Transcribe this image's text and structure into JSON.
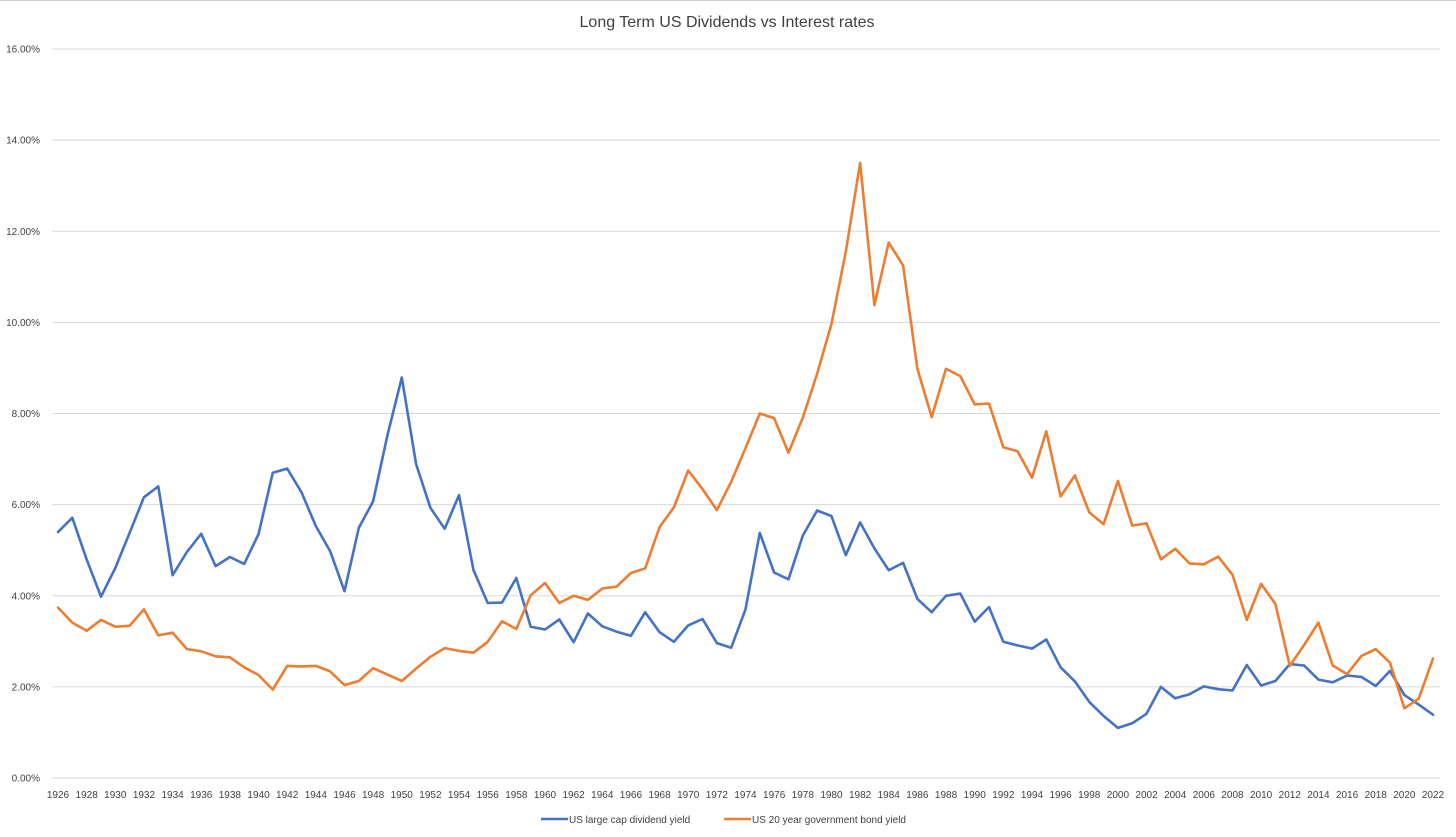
{
  "chart_data": {
    "type": "line",
    "title": "Long Term US Dividends vs Interest rates",
    "xlabel": "",
    "ylabel": "",
    "ylim": [
      0,
      0.16
    ],
    "ytick_step": 0.02,
    "yticks": [
      "0.00%",
      "2.00%",
      "4.00%",
      "6.00%",
      "8.00%",
      "10.00%",
      "12.00%",
      "14.00%",
      "16.00%"
    ],
    "x_start": 1926,
    "x_end": 2022,
    "xtick_step": 2,
    "grid": true,
    "legend_position": "bottom",
    "series": [
      {
        "name": "US large cap dividend yield",
        "color": "#4472c4",
        "values": [
          0.054,
          0.0571,
          0.048,
          0.0398,
          0.0461,
          0.0538,
          0.0616,
          0.064,
          0.0445,
          0.0496,
          0.0536,
          0.0465,
          0.0485,
          0.047,
          0.0535,
          0.067,
          0.0679,
          0.0627,
          0.0553,
          0.0498,
          0.041,
          0.0549,
          0.0607,
          0.0752,
          0.0879,
          0.0689,
          0.0593,
          0.0547,
          0.0621,
          0.0457,
          0.0384,
          0.0385,
          0.0439,
          0.0332,
          0.0326,
          0.0348,
          0.0298,
          0.0361,
          0.0333,
          0.0321,
          0.0312,
          0.0364,
          0.032,
          0.0299,
          0.0335,
          0.0349,
          0.0296,
          0.0286,
          0.037,
          0.0538,
          0.0451,
          0.0436,
          0.0532,
          0.0587,
          0.0575,
          0.0489,
          0.0561,
          0.0504,
          0.0456,
          0.0472,
          0.0393,
          0.0364,
          0.04,
          0.0405,
          0.0343,
          0.0375,
          0.0299,
          0.0291,
          0.0284,
          0.0304,
          0.0243,
          0.0212,
          0.0167,
          0.0136,
          0.011,
          0.012,
          0.0141,
          0.02,
          0.0175,
          0.0184,
          0.0201,
          0.0195,
          0.0192,
          0.0248,
          0.0203,
          0.0213,
          0.025,
          0.0247,
          0.0216,
          0.021,
          0.0225,
          0.0222,
          0.0202,
          0.0235,
          0.0182,
          0.0161,
          0.0139
        ]
      },
      {
        "name": "US 20 year government bond yield",
        "color": "#ed7d31",
        "values": [
          0.0374,
          0.0341,
          0.0323,
          0.0347,
          0.0332,
          0.0334,
          0.037,
          0.0313,
          0.0319,
          0.0283,
          0.0278,
          0.0267,
          0.0265,
          0.0243,
          0.0226,
          0.0194,
          0.0246,
          0.0245,
          0.0246,
          0.0234,
          0.0204,
          0.0213,
          0.0241,
          0.0227,
          0.0213,
          0.024,
          0.0266,
          0.0285,
          0.0279,
          0.0275,
          0.0299,
          0.0344,
          0.0327,
          0.0401,
          0.0428,
          0.0384,
          0.04,
          0.0391,
          0.0416,
          0.042,
          0.045,
          0.046,
          0.0551,
          0.0594,
          0.0675,
          0.0634,
          0.0588,
          0.065,
          0.0724,
          0.08,
          0.079,
          0.0714,
          0.0791,
          0.0887,
          0.0996,
          0.1155,
          0.135,
          0.1038,
          0.1175,
          0.1125,
          0.0898,
          0.0792,
          0.0898,
          0.0882,
          0.082,
          0.0822,
          0.0726,
          0.0717,
          0.0659,
          0.0761,
          0.0618,
          0.0664,
          0.0583,
          0.0557,
          0.0652,
          0.0554,
          0.0559,
          0.048,
          0.0503,
          0.0471,
          0.0469,
          0.0486,
          0.0446,
          0.0347,
          0.0426,
          0.0382,
          0.0246,
          0.0292,
          0.0341,
          0.0247,
          0.0228,
          0.0268,
          0.0283,
          0.0253,
          0.0153,
          0.0174,
          0.0262
        ]
      }
    ]
  }
}
